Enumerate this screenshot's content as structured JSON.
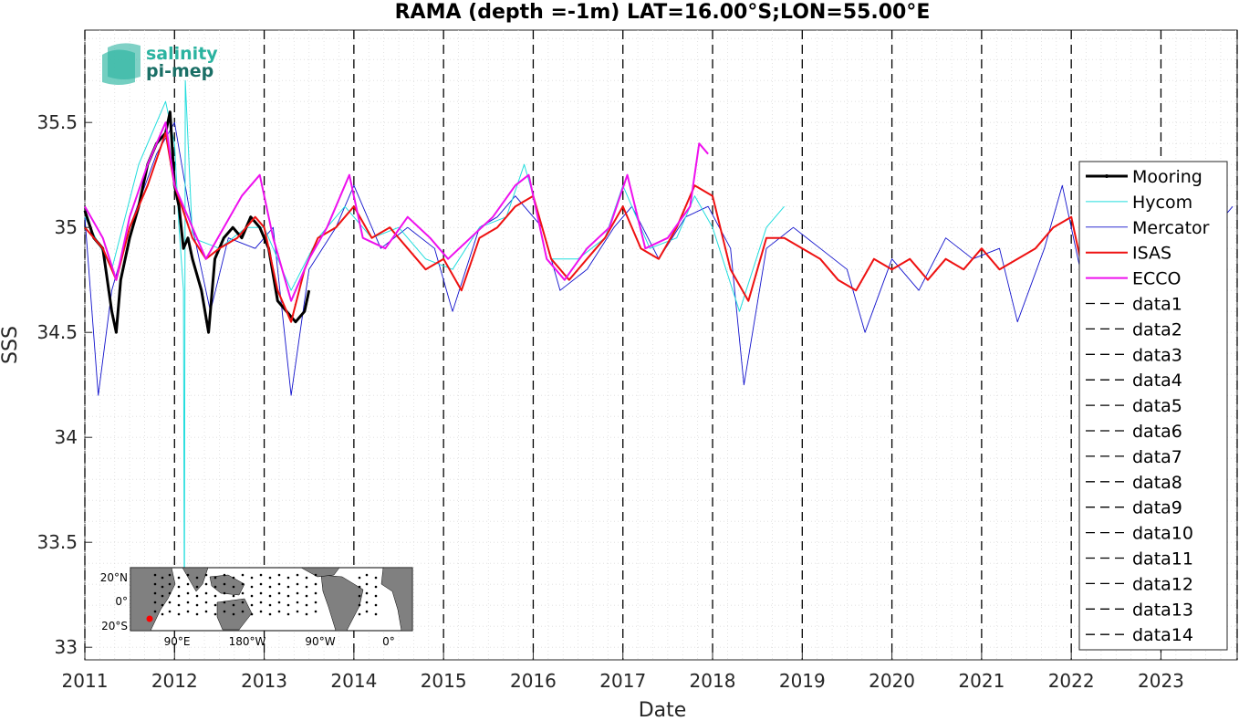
{
  "chart_data": {
    "type": "line",
    "title": "RAMA (depth =-1m) LAT=16.00°S;LON=55.00°E",
    "xlabel": "Date",
    "ylabel": "SSS",
    "xlim": [
      2011.0,
      2023.85
    ],
    "ylim": [
      32.94,
      35.94
    ],
    "x_ticks": [
      "2011",
      "2012",
      "2013",
      "2014",
      "2015",
      "2016",
      "2017",
      "2018",
      "2019",
      "2020",
      "2021",
      "2022",
      "2023"
    ],
    "y_ticks": [
      "33",
      "33.5",
      "34",
      "34.5",
      "35",
      "35.5"
    ],
    "grid": true,
    "legend_position": "right",
    "series": [
      {
        "name": "Mooring",
        "color": "#000000",
        "style": "solid-thick",
        "x": [
          2011.0,
          2011.1,
          2011.2,
          2011.3,
          2011.35,
          2011.4,
          2011.5,
          2011.6,
          2011.7,
          2011.8,
          2011.9,
          2011.95,
          2012.0,
          2012.05,
          2012.1,
          2012.15,
          2012.2,
          2012.3,
          2012.38,
          2012.45,
          2012.55,
          2012.65,
          2012.75,
          2012.85,
          2012.95,
          2013.05,
          2013.15,
          2013.25,
          2013.35,
          2013.45,
          2013.5
        ],
        "y": [
          35.08,
          34.95,
          34.9,
          34.6,
          34.5,
          34.75,
          34.95,
          35.1,
          35.3,
          35.4,
          35.45,
          35.55,
          35.2,
          35.1,
          34.9,
          34.95,
          34.85,
          34.7,
          34.5,
          34.85,
          34.95,
          35.0,
          34.95,
          35.05,
          35.0,
          34.9,
          34.65,
          34.6,
          34.55,
          34.6,
          34.7
        ]
      },
      {
        "name": "Hycom",
        "color": "#22dddd",
        "style": "solid",
        "x": [
          2011.0,
          2011.3,
          2011.6,
          2011.9,
          2012.0,
          2012.05,
          2012.1,
          2012.11,
          2012.12,
          2012.2,
          2012.5,
          2012.8,
          2013.0,
          2013.3,
          2013.6,
          2013.9,
          2014.2,
          2014.5,
          2014.8,
          2015.1,
          2015.4,
          2015.7,
          2015.9,
          2016.2,
          2016.5,
          2016.8,
          2017.0,
          2017.3,
          2017.6,
          2017.8,
          2018.0,
          2018.3,
          2018.6,
          2018.8
        ],
        "y": [
          35.05,
          34.8,
          35.3,
          35.6,
          35.4,
          35.0,
          34.7,
          33.1,
          35.7,
          34.95,
          34.9,
          35.0,
          35.0,
          34.7,
          34.95,
          35.1,
          34.95,
          35.0,
          34.85,
          34.8,
          35.0,
          35.05,
          35.3,
          34.85,
          34.85,
          34.95,
          35.2,
          34.9,
          34.95,
          35.15,
          35.0,
          34.6,
          35.0,
          35.1
        ]
      },
      {
        "name": "Mercator",
        "color": "#1111cc",
        "style": "solid-thin",
        "x": [
          2011.0,
          2011.15,
          2011.3,
          2011.5,
          2011.8,
          2012.0,
          2012.2,
          2012.4,
          2012.6,
          2012.9,
          2013.1,
          2013.3,
          2013.5,
          2013.8,
          2014.0,
          2014.3,
          2014.6,
          2014.9,
          2015.1,
          2015.4,
          2015.6,
          2015.8,
          2016.1,
          2016.3,
          2016.6,
          2016.9,
          2017.1,
          2017.4,
          2017.7,
          2017.95,
          2018.2,
          2018.35,
          2018.6,
          2018.9,
          2019.2,
          2019.5,
          2019.7,
          2020.0,
          2020.3,
          2020.6,
          2020.9,
          2021.2,
          2021.4,
          2021.7,
          2021.9,
          2022.1,
          2022.4,
          2022.7,
          2022.95,
          2023.2,
          2023.5,
          2023.8
        ],
        "y": [
          35.05,
          34.2,
          34.7,
          35.0,
          35.35,
          35.5,
          35.0,
          34.6,
          34.95,
          34.9,
          35.0,
          34.2,
          34.8,
          35.0,
          35.2,
          34.9,
          35.0,
          34.9,
          34.6,
          35.0,
          35.05,
          35.15,
          35.0,
          34.7,
          34.8,
          35.0,
          35.1,
          34.85,
          35.05,
          35.1,
          34.9,
          34.25,
          34.9,
          35.0,
          34.9,
          34.8,
          34.5,
          34.85,
          34.7,
          34.95,
          34.85,
          34.9,
          34.55,
          34.9,
          35.2,
          34.8,
          34.9,
          35.0,
          34.85,
          35.3,
          34.95,
          35.1
        ]
      },
      {
        "name": "ISAS",
        "color": "#ee1111",
        "style": "solid-medium",
        "x": [
          2011.0,
          2011.2,
          2011.35,
          2011.5,
          2011.7,
          2011.9,
          2012.0,
          2012.2,
          2012.35,
          2012.5,
          2012.7,
          2012.9,
          2013.0,
          2013.15,
          2013.3,
          2013.45,
          2013.6,
          2013.8,
          2014.0,
          2014.2,
          2014.4,
          2014.6,
          2014.8,
          2015.0,
          2015.2,
          2015.4,
          2015.6,
          2015.8,
          2016.0,
          2016.2,
          2016.4,
          2016.6,
          2016.8,
          2017.0,
          2017.2,
          2017.4,
          2017.6,
          2017.8,
          2018.0,
          2018.2,
          2018.4,
          2018.6,
          2018.8,
          2019.0,
          2019.2,
          2019.4,
          2019.6,
          2019.8,
          2020.0,
          2020.2,
          2020.4,
          2020.6,
          2020.8,
          2021.0,
          2021.2,
          2021.4,
          2021.6,
          2021.8,
          2022.0,
          2022.1
        ],
        "y": [
          35.0,
          34.9,
          34.75,
          35.0,
          35.2,
          35.45,
          35.2,
          34.95,
          34.85,
          34.9,
          34.95,
          35.05,
          35.0,
          34.7,
          34.55,
          34.8,
          34.95,
          35.0,
          35.1,
          34.95,
          35.0,
          34.9,
          34.8,
          34.85,
          34.7,
          34.95,
          35.0,
          35.1,
          35.15,
          34.85,
          34.75,
          34.85,
          34.95,
          35.1,
          34.9,
          34.85,
          35.0,
          35.2,
          35.15,
          34.8,
          34.65,
          34.95,
          34.95,
          34.9,
          34.85,
          34.75,
          34.7,
          34.85,
          34.8,
          34.85,
          34.75,
          34.85,
          34.8,
          34.9,
          34.8,
          34.85,
          34.9,
          35.0,
          35.05,
          34.85
        ]
      },
      {
        "name": "ECCO",
        "color": "#ee11ee",
        "style": "solid-medium",
        "x": [
          2011.0,
          2011.2,
          2011.35,
          2011.5,
          2011.7,
          2011.9,
          2012.0,
          2012.2,
          2012.35,
          2012.55,
          2012.75,
          2012.95,
          2013.1,
          2013.3,
          2013.5,
          2013.7,
          2013.95,
          2014.1,
          2014.35,
          2014.6,
          2014.85,
          2015.05,
          2015.3,
          2015.55,
          2015.8,
          2015.95,
          2016.15,
          2016.35,
          2016.6,
          2016.85,
          2017.05,
          2017.25,
          2017.5,
          2017.75,
          2017.85,
          2017.95
        ],
        "y": [
          35.1,
          34.95,
          34.75,
          35.05,
          35.3,
          35.5,
          35.2,
          35.0,
          34.85,
          35.0,
          35.15,
          35.25,
          34.95,
          34.65,
          34.85,
          35.0,
          35.25,
          34.95,
          34.9,
          35.05,
          34.95,
          34.85,
          34.95,
          35.05,
          35.2,
          35.25,
          34.85,
          34.75,
          34.9,
          35.0,
          35.25,
          34.9,
          34.95,
          35.1,
          35.4,
          35.35
        ]
      }
    ],
    "vertical_lines": [
      {
        "name": "data1",
        "x": 2011.0
      },
      {
        "name": "data2",
        "x": 2012.0
      },
      {
        "name": "data3",
        "x": 2013.0
      },
      {
        "name": "data4",
        "x": 2014.0
      },
      {
        "name": "data5",
        "x": 2015.0
      },
      {
        "name": "data6",
        "x": 2016.0
      },
      {
        "name": "data7",
        "x": 2017.0
      },
      {
        "name": "data8",
        "x": 2018.0
      },
      {
        "name": "data9",
        "x": 2019.0
      },
      {
        "name": "data10",
        "x": 2020.0
      },
      {
        "name": "data11",
        "x": 2021.0
      },
      {
        "name": "data12",
        "x": 2022.0
      },
      {
        "name": "data13",
        "x": 2023.0
      },
      {
        "name": "data14",
        "x": 2023.85
      }
    ]
  },
  "logo": {
    "line1": "salinity",
    "line2": "pi-mep",
    "color1": "#2bb3a0",
    "color2": "#1a6f66"
  },
  "inset_map": {
    "lat_labels": [
      "20°N",
      "0°",
      "20°S"
    ],
    "lon_labels": [
      "90°E",
      "180°W",
      "90°W",
      "0°"
    ],
    "land_color": "#808080",
    "station_color": "#ff0000"
  }
}
